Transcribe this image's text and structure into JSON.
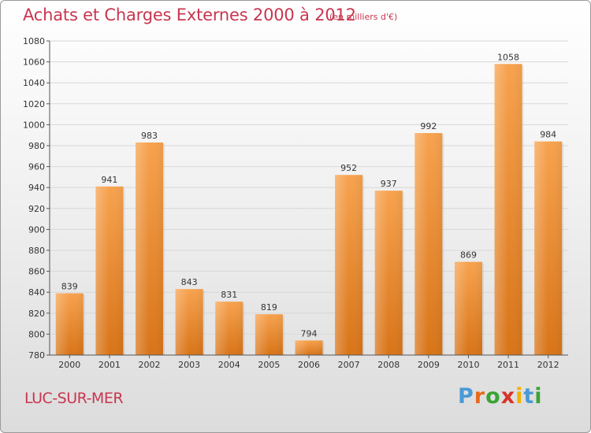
{
  "header": {
    "title": "Achats et Charges Externes 2000 à 2012",
    "subtitle": "(en milliers d'€)"
  },
  "footer": {
    "town": "LUC-SUR-MER",
    "logo": "Proxiti",
    "logo_colors": [
      "#4a9ad6",
      "#e86a1c",
      "#3aa336",
      "#d8322a",
      "#f2b200",
      "#4a9ad6",
      "#3aa336"
    ]
  },
  "chart_data": {
    "type": "bar",
    "title": "Achats et Charges Externes 2000 à 2012",
    "subtitle": "(en milliers d'€)",
    "categories": [
      "2000",
      "2001",
      "2002",
      "2003",
      "2004",
      "2005",
      "2006",
      "2007",
      "2008",
      "2009",
      "2010",
      "2011",
      "2012"
    ],
    "values": [
      839,
      941,
      983,
      843,
      831,
      819,
      794,
      952,
      937,
      992,
      869,
      1058,
      984
    ],
    "ylim": [
      780,
      1080
    ],
    "yticks": [
      780,
      800,
      820,
      840,
      860,
      880,
      900,
      920,
      940,
      960,
      980,
      1000,
      1020,
      1040,
      1060,
      1080
    ],
    "grid": true,
    "bar_color": "#f0933a",
    "xlabel": "",
    "ylabel": ""
  }
}
